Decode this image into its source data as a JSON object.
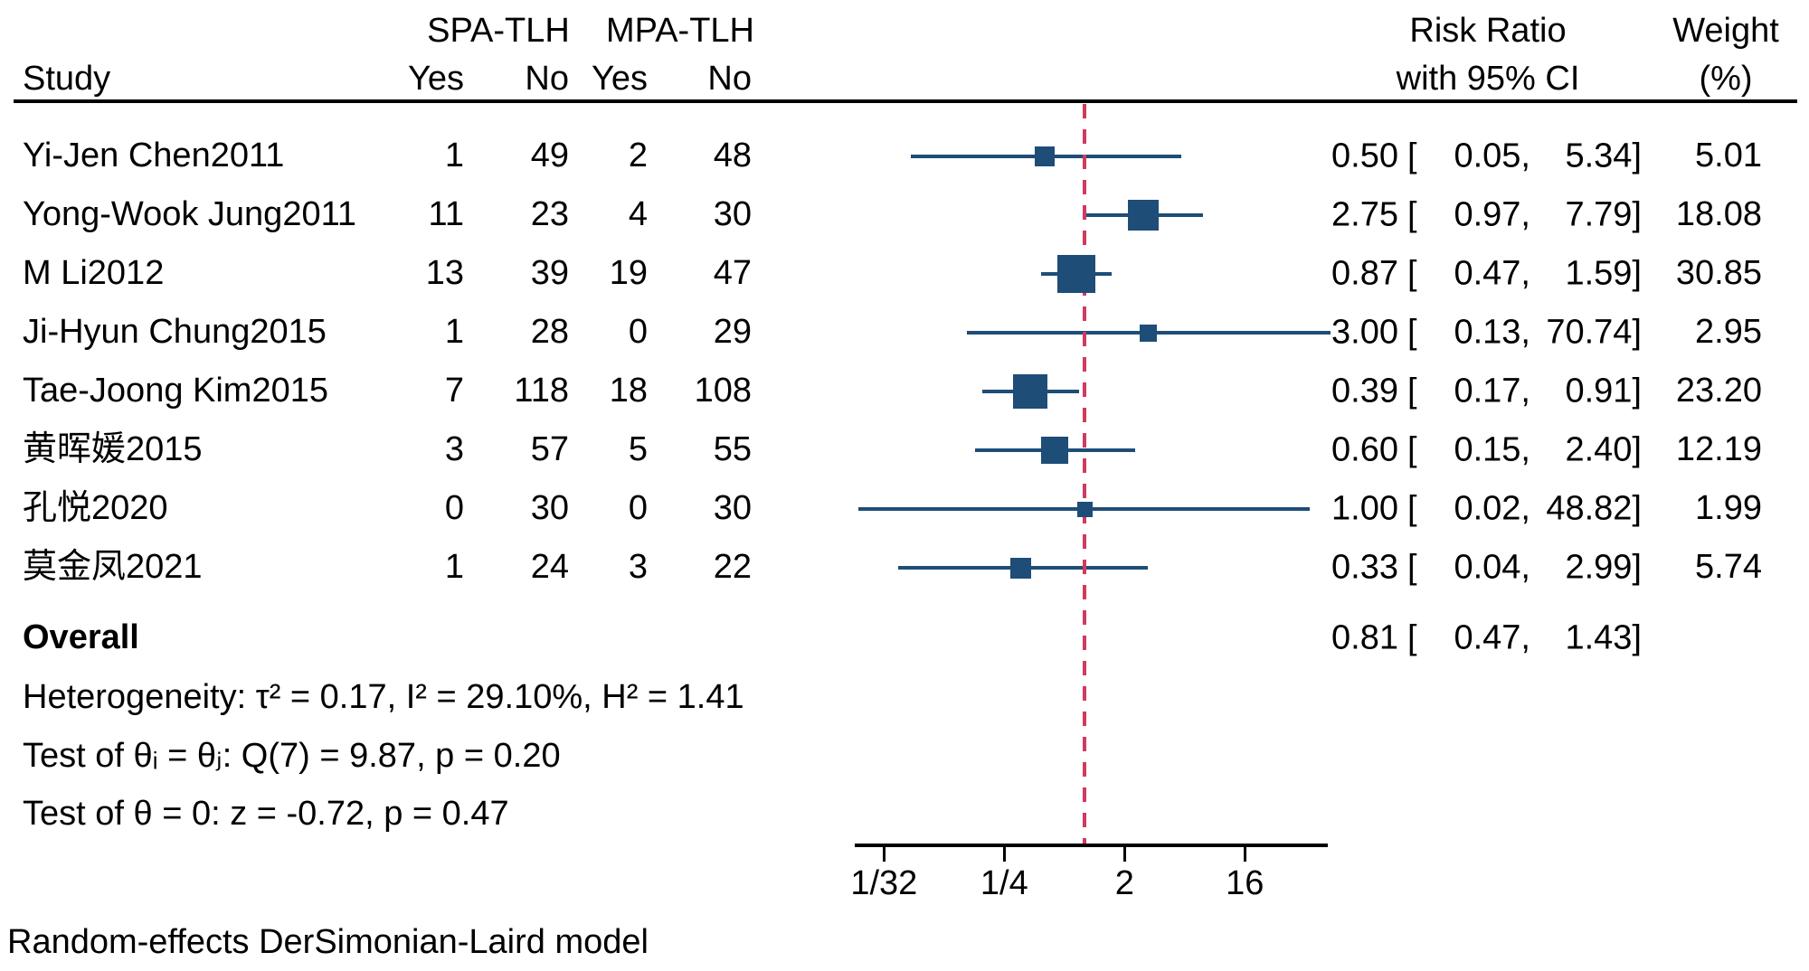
{
  "header": {
    "study": "Study",
    "group1": "SPA-TLH",
    "group2": "MPA-TLH",
    "col_yes": "Yes",
    "col_no": "No",
    "effect_line1": "Risk Ratio",
    "effect_line2": "with 95% CI",
    "weight_line1": "Weight",
    "weight_line2": "(%)"
  },
  "chart_data": {
    "type": "forest",
    "effect_measure": "Risk Ratio",
    "x_scale": "log2",
    "axis": {
      "ticks": [
        {
          "label": "1/32",
          "value": 0.03125
        },
        {
          "label": "1/4",
          "value": 0.25
        },
        {
          "label": "2",
          "value": 2
        },
        {
          "label": "16",
          "value": 16
        }
      ],
      "null_value": 1
    },
    "studies": [
      {
        "name": "Yi-Jen Chen2011",
        "spa_yes": "1",
        "spa_no": "49",
        "mpa_yes": "2",
        "mpa_no": "48",
        "rr": "0.50",
        "ci_low": "0.05",
        "ci_high": "5.34",
        "weight": "5.01"
      },
      {
        "name": "Yong-Wook Jung2011",
        "spa_yes": "11",
        "spa_no": "23",
        "mpa_yes": "4",
        "mpa_no": "30",
        "rr": "2.75",
        "ci_low": "0.97",
        "ci_high": "7.79",
        "weight": "18.08"
      },
      {
        "name": "M Li2012",
        "spa_yes": "13",
        "spa_no": "39",
        "mpa_yes": "19",
        "mpa_no": "47",
        "rr": "0.87",
        "ci_low": "0.47",
        "ci_high": "1.59",
        "weight": "30.85"
      },
      {
        "name": "Ji-Hyun Chung2015",
        "spa_yes": "1",
        "spa_no": "28",
        "mpa_yes": "0",
        "mpa_no": "29",
        "rr": "3.00",
        "ci_low": "0.13",
        "ci_high": "70.74",
        "weight": "2.95"
      },
      {
        "name": "Tae-Joong Kim2015",
        "spa_yes": "7",
        "spa_no": "118",
        "mpa_yes": "18",
        "mpa_no": "108",
        "rr": "0.39",
        "ci_low": "0.17",
        "ci_high": "0.91",
        "weight": "23.20"
      },
      {
        "name": "黄晖媛2015",
        "spa_yes": "3",
        "spa_no": "57",
        "mpa_yes": "5",
        "mpa_no": "55",
        "rr": "0.60",
        "ci_low": "0.15",
        "ci_high": "2.40",
        "weight": "12.19"
      },
      {
        "name": "孔悦2020",
        "spa_yes": "0",
        "spa_no": "30",
        "mpa_yes": "0",
        "mpa_no": "30",
        "rr": "1.00",
        "ci_low": "0.02",
        "ci_high": "48.82",
        "weight": "1.99"
      },
      {
        "name": "莫金凤2021",
        "spa_yes": "1",
        "spa_no": "24",
        "mpa_yes": "3",
        "mpa_no": "22",
        "rr": "0.33",
        "ci_low": "0.04",
        "ci_high": "2.99",
        "weight": "5.74"
      }
    ],
    "overall": {
      "label": "Overall",
      "rr": "0.81",
      "ci_low": "0.47",
      "ci_high": "1.43"
    },
    "heterogeneity": "Heterogeneity: τ² = 0.17, I² = 29.10%, H² = 1.41",
    "test_theta_ij": "Test of θᵢ = θⱼ: Q(7) = 9.87, p = 0.20",
    "test_theta_zero": "Test of θ = 0: z = -0.72, p = 0.47",
    "note": "Random-effects DerSimonian-Laird model",
    "colors": {
      "marker": "#1e4d78",
      "ci_line": "#1e4d78",
      "null_line": "#d13a5f",
      "diamond": "#66802d",
      "axis": "#000000"
    }
  }
}
